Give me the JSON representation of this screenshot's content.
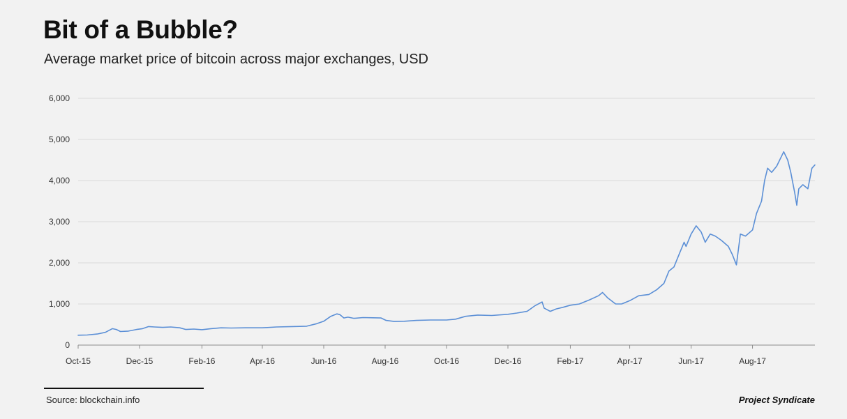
{
  "header": {
    "title": "Bit of a Bubble?",
    "subtitle": "Average market price of bitcoin across major exchanges, USD"
  },
  "footer": {
    "source": "Source: blockchain.info",
    "brand": "Project Syndicate"
  },
  "colors": {
    "line": "#5b8fd6",
    "grid": "#d9d9d9",
    "axis": "#8c8c8c",
    "background": "#f2f2f2"
  },
  "chart_data": {
    "type": "line",
    "title": "Bit of a Bubble?",
    "subtitle": "Average market price of bitcoin across major exchanges, USD",
    "xlabel": "",
    "ylabel": "",
    "ylim": [
      0,
      6000
    ],
    "yticks": [
      0,
      1000,
      2000,
      3000,
      4000,
      5000,
      6000
    ],
    "ytick_labels": [
      "0",
      "1,000",
      "2,000",
      "3,000",
      "4,000",
      "5,000",
      "6,000"
    ],
    "xlim": [
      "2015-10-01",
      "2017-10-02"
    ],
    "xticks": [
      "2015-10-01",
      "2015-12-01",
      "2016-02-01",
      "2016-04-01",
      "2016-06-01",
      "2016-08-01",
      "2016-10-01",
      "2016-12-01",
      "2017-02-01",
      "2017-04-01",
      "2017-06-01",
      "2017-08-01"
    ],
    "xtick_labels": [
      "Oct-15",
      "Dec-15",
      "Feb-16",
      "Apr-16",
      "Jun-16",
      "Aug-16",
      "Oct-16",
      "Dec-16",
      "Feb-17",
      "Apr-17",
      "Jun-17",
      "Aug-17"
    ],
    "grid": true,
    "legend": "none",
    "series": [
      {
        "x": [
          "2015-10-01",
          "2015-10-10",
          "2015-10-20",
          "2015-10-28",
          "2015-11-04",
          "2015-11-08",
          "2015-11-12",
          "2015-11-20",
          "2015-11-28",
          "2015-12-04",
          "2015-12-10",
          "2015-12-16",
          "2015-12-24",
          "2016-01-01",
          "2016-01-10",
          "2016-01-16",
          "2016-01-24",
          "2016-02-01",
          "2016-02-10",
          "2016-02-20",
          "2016-03-01",
          "2016-03-15",
          "2016-04-01",
          "2016-04-15",
          "2016-05-01",
          "2016-05-15",
          "2016-05-25",
          "2016-06-01",
          "2016-06-08",
          "2016-06-14",
          "2016-06-17",
          "2016-06-21",
          "2016-06-25",
          "2016-07-01",
          "2016-07-10",
          "2016-07-20",
          "2016-07-28",
          "2016-08-02",
          "2016-08-10",
          "2016-08-20",
          "2016-09-01",
          "2016-09-15",
          "2016-10-01",
          "2016-10-10",
          "2016-10-20",
          "2016-11-01",
          "2016-11-15",
          "2016-12-01",
          "2016-12-10",
          "2016-12-20",
          "2016-12-28",
          "2017-01-04",
          "2017-01-06",
          "2017-01-12",
          "2017-01-18",
          "2017-01-25",
          "2017-02-01",
          "2017-02-10",
          "2017-02-20",
          "2017-03-01",
          "2017-03-05",
          "2017-03-10",
          "2017-03-18",
          "2017-03-24",
          "2017-04-01",
          "2017-04-10",
          "2017-04-20",
          "2017-04-28",
          "2017-05-05",
          "2017-05-10",
          "2017-05-15",
          "2017-05-20",
          "2017-05-25",
          "2017-05-27",
          "2017-06-01",
          "2017-06-06",
          "2017-06-11",
          "2017-06-15",
          "2017-06-20",
          "2017-06-25",
          "2017-07-01",
          "2017-07-08",
          "2017-07-12",
          "2017-07-16",
          "2017-07-20",
          "2017-07-25",
          "2017-08-01",
          "2017-08-05",
          "2017-08-10",
          "2017-08-13",
          "2017-08-16",
          "2017-08-20",
          "2017-08-25",
          "2017-09-01",
          "2017-09-05",
          "2017-09-08",
          "2017-09-12",
          "2017-09-14",
          "2017-09-16",
          "2017-09-20",
          "2017-09-25",
          "2017-09-29",
          "2017-10-02"
        ],
        "values": [
          240,
          245,
          270,
          310,
          400,
          380,
          330,
          340,
          380,
          400,
          450,
          440,
          430,
          440,
          420,
          380,
          390,
          375,
          400,
          420,
          415,
          420,
          420,
          440,
          450,
          460,
          520,
          580,
          700,
          760,
          740,
          660,
          680,
          650,
          670,
          665,
          660,
          600,
          575,
          580,
          600,
          610,
          610,
          630,
          700,
          730,
          720,
          750,
          780,
          820,
          960,
          1050,
          900,
          820,
          880,
          920,
          970,
          1000,
          1100,
          1200,
          1280,
          1150,
          1000,
          1000,
          1080,
          1200,
          1230,
          1350,
          1500,
          1800,
          1900,
          2200,
          2500,
          2400,
          2700,
          2900,
          2750,
          2500,
          2700,
          2650,
          2550,
          2400,
          2200,
          1950,
          2700,
          2650,
          2800,
          3200,
          3500,
          4000,
          4300,
          4200,
          4350,
          4700,
          4500,
          4200,
          3700,
          3400,
          3800,
          3900,
          3800,
          4300,
          4380
        ]
      }
    ]
  }
}
